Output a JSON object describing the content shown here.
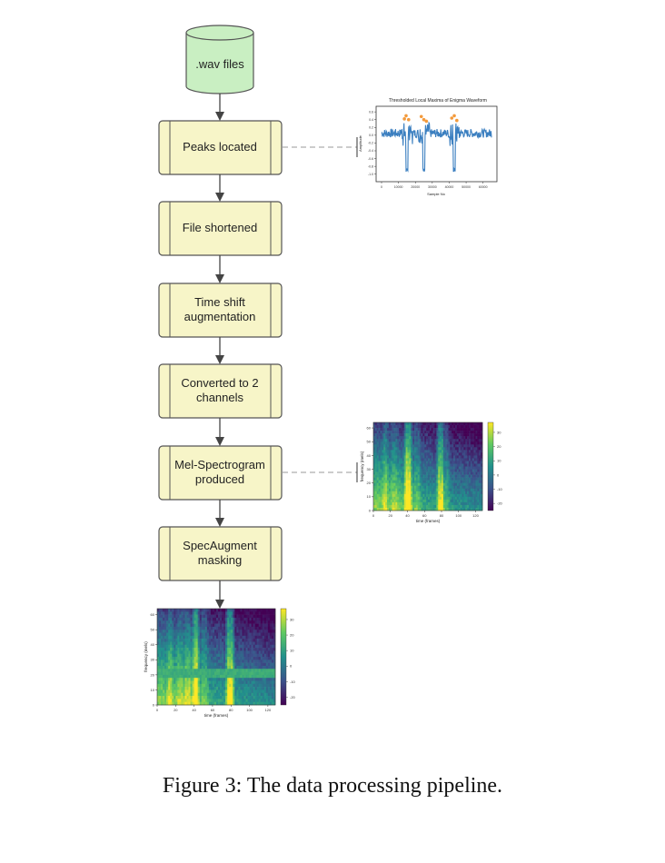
{
  "pipeline": {
    "source": ".wav files",
    "steps": [
      "Peaks located",
      "File shortened",
      "Time shift\naugmentation",
      "Converted to 2\nchannels",
      "Mel-Spectrogram\nproduced",
      "SpecAugment\nmasking"
    ],
    "colors": {
      "source_fill": "#c9efc2",
      "step_fill": "#f7f5c8",
      "stroke": "#555555"
    }
  },
  "waveform": {
    "title": "Thresholded Local Maxima of Enigma Waveform",
    "xlabel": "Sample No",
    "ylabel": "Amplitude",
    "xticks": [
      "0",
      "10000",
      "20000",
      "30000",
      "40000",
      "50000",
      "60000"
    ],
    "yticks": [
      "0.6",
      "0.4",
      "0.2",
      "0.0",
      "-0.2",
      "-0.4",
      "-0.6",
      "-0.8",
      "-1.0"
    ],
    "colors": {
      "line": "#3b7fc0",
      "peaks": "#f39a3c"
    }
  },
  "spectrogram_1": {
    "xlabel": "time (frames)",
    "ylabel": "frequency (mels)",
    "xticks": [
      "0",
      "20",
      "40",
      "60",
      "80",
      "100",
      "120"
    ],
    "yticks": [
      "0",
      "10",
      "20",
      "30",
      "40",
      "50",
      "60"
    ],
    "colorbar_ticks": [
      "30",
      "20",
      "10",
      "0",
      "-10",
      "-20"
    ]
  },
  "spectrogram_2": {
    "xlabel": "time (frames)",
    "ylabel": "frequency (mels)",
    "xticks": [
      "0",
      "20",
      "40",
      "60",
      "80",
      "100",
      "120"
    ],
    "yticks": [
      "0",
      "10",
      "20",
      "30",
      "40",
      "50",
      "60"
    ],
    "colorbar_ticks": [
      "30",
      "20",
      "10",
      "0",
      "-10",
      "-20"
    ]
  },
  "caption": "Figure 3: The data processing pipeline."
}
